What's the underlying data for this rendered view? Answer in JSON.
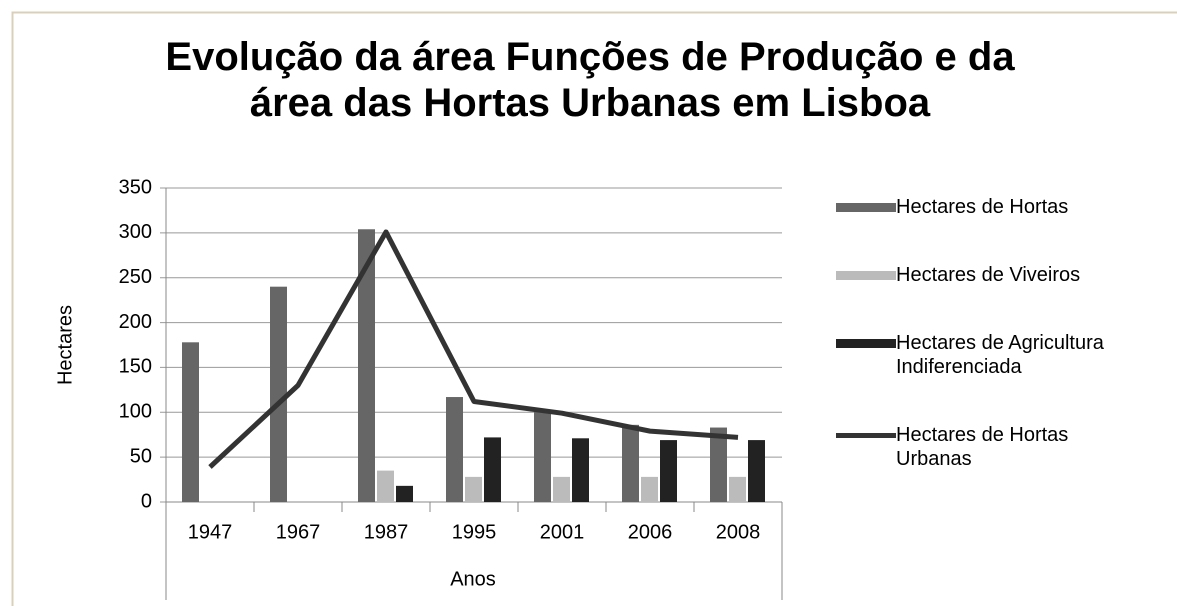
{
  "chart_data": {
    "type": "bar",
    "title": "Evolução da área Funções de Produção e da área das Hortas Urbanas em Lisboa",
    "x_label": "Anos",
    "y_label": "Hectares",
    "categories": [
      "1947",
      "1967",
      "1987",
      "1995",
      "2001",
      "2006",
      "2008"
    ],
    "series": [
      {
        "name": "Hectares de Hortas",
        "type": "bar",
        "color": "#666666",
        "values": [
          178,
          240,
          304,
          117,
          103,
          86,
          83
        ]
      },
      {
        "name": "Hectares de Viveiros",
        "type": "bar",
        "color": "#bbbbbb",
        "values": [
          0,
          0,
          35,
          28,
          28,
          28,
          28
        ]
      },
      {
        "name": "Hectares de Agricultura Indiferenciada",
        "type": "bar",
        "color": "#222222",
        "values": [
          0,
          0,
          18,
          72,
          71,
          69,
          69
        ]
      },
      {
        "name": "Hectares de Hortas Urbanas",
        "type": "line",
        "color": "#333333",
        "values": [
          39,
          130,
          301,
          112,
          99,
          79,
          72
        ]
      }
    ],
    "ylim": [
      0,
      350
    ],
    "yticks": [
      0,
      50,
      100,
      150,
      200,
      250,
      300,
      350
    ],
    "grid": true,
    "legend": "right"
  }
}
